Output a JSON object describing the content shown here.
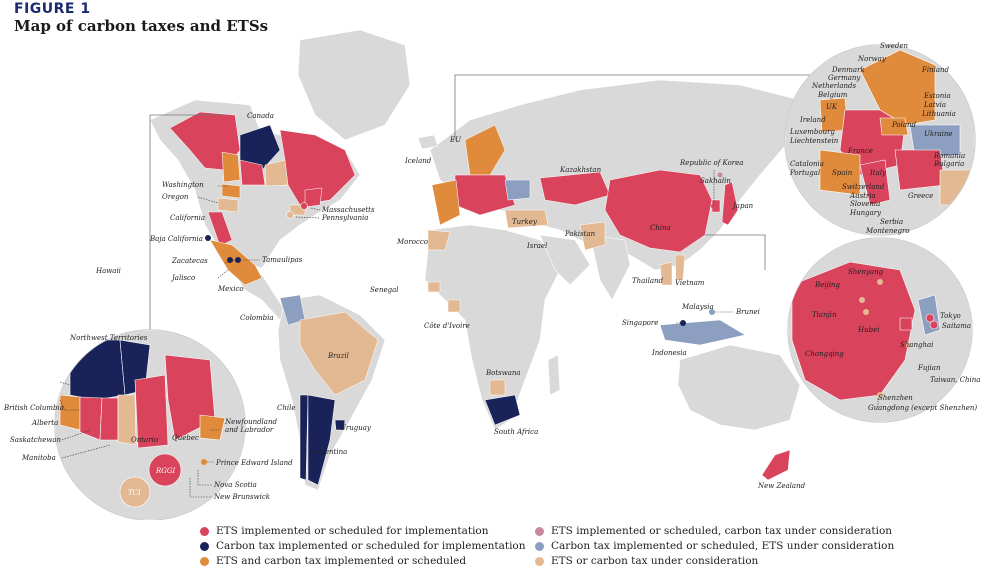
{
  "figure": {
    "number": "FIGURE 1",
    "title": "Map of carbon taxes and ETSs"
  },
  "colors": {
    "ocean": "#ffffff",
    "land": "#d9d9d9",
    "ets": "#d9435c",
    "carbon_tax": "#1a2359",
    "both": "#e08a3c",
    "ets_tax_consider": "#c9899a",
    "tax_ets_consider": "#8d9fc0",
    "consider": "#e3b994"
  },
  "legend": [
    {
      "key": "ets",
      "label": "ETS implemented or scheduled for implementation"
    },
    {
      "key": "carbon_tax",
      "label": "Carbon tax implemented or scheduled for implementation"
    },
    {
      "key": "both",
      "label": "ETS and carbon tax implemented or scheduled"
    },
    {
      "key": "ets_tax_consider",
      "label": "ETS implemented or scheduled, carbon tax under consideration"
    },
    {
      "key": "tax_ets_consider",
      "label": "Carbon tax implemented or scheduled, ETS under consideration"
    },
    {
      "key": "consider",
      "label": "ETS or carbon tax under consideration"
    }
  ],
  "labels": {
    "canada": "Canada",
    "washington": "Washington",
    "oregon": "Oregon",
    "california": "California",
    "massachusetts": "Massachusetts",
    "pennsylvania": "Pennsylvania",
    "baja_california": "Baja California",
    "zacatecas": "Zacatecas",
    "tamaulipas": "Tamaulipas",
    "jalisco": "Jalisco",
    "mexico": "Mexico",
    "hawaii": "Hawaii",
    "colombia": "Colombia",
    "brazil": "Brazil",
    "chile": "Chile",
    "uruguay": "Uruguay",
    "argentina": "Argentina",
    "iceland": "Iceland",
    "eu": "EU",
    "morocco": "Morocco",
    "senegal": "Senegal",
    "cote_divoire": "Côte d'Ivoire",
    "botswana": "Botswana",
    "south_africa": "South Africa",
    "turkey": "Turkey",
    "israel": "Israel",
    "pakistan": "Pakistan",
    "kazakhstan": "Kazakhstan",
    "china": "China",
    "republic_of_korea": "Republic of Korea",
    "sakhalin": "Sakhalin",
    "japan": "Japan",
    "thailand": "Thailand",
    "vietnam": "Vietnam",
    "malaysia": "Malaysia",
    "brunei": "Brunei",
    "singapore": "Singapore",
    "indonesia": "Indonesia",
    "new_zealand": "New Zealand",
    "northwest_territories": "Northwest Territories",
    "british_columbia": "British Columbia",
    "alberta": "Alberta",
    "saskatchewan": "Saskatchewan",
    "manitoba": "Manitoba",
    "ontario": "Ontario",
    "quebec": "Québec",
    "newfoundland": "Newfoundland",
    "and_labrador": "and Labrador",
    "prince_edward_island": "Prince Edward Island",
    "nova_scotia": "Nova Scotia",
    "new_brunswick": "New Brunswick",
    "rggi": "RGGI",
    "tci": "TCI",
    "sweden": "Sweden",
    "norway": "Norway",
    "finland": "Finland",
    "denmark": "Denmark",
    "germany": "Germany",
    "netherlands": "Netherlands",
    "belgium": "Belgium",
    "uk": "UK",
    "ireland": "Ireland",
    "estonia": "Estonia",
    "latvia": "Latvia",
    "lithuania": "Lithuania",
    "luxembourg": "Luxembourg",
    "liechtenstein": "Liechtenstein",
    "poland": "Poland",
    "ukraine": "Ukraine",
    "france": "France",
    "romania": "Romania",
    "bulgaria": "Bulgaria",
    "catalonia": "Catalonia",
    "portugal": "Portugal",
    "spain": "Spain",
    "italy": "Italy",
    "switzerland": "Switzerland",
    "austria": "Austria",
    "slovenia": "Slovenia",
    "hungary": "Hungary",
    "serbia": "Serbia",
    "montenegro": "Montenegro",
    "greece": "Greece",
    "shenyang": "Shenyang",
    "beijing": "Beijing",
    "tianjin": "Tianjin",
    "hubei": "Hubei",
    "chongqing": "Chongqing",
    "shanghai": "Shanghai",
    "fujian": "Fujian",
    "taiwan_china": "Taiwan, China",
    "shenzhen": "Shenzhen",
    "guangdong": "Guangdong (except Shenzhen)",
    "tokyo": "Tokyo",
    "saitama": "Saitama"
  }
}
